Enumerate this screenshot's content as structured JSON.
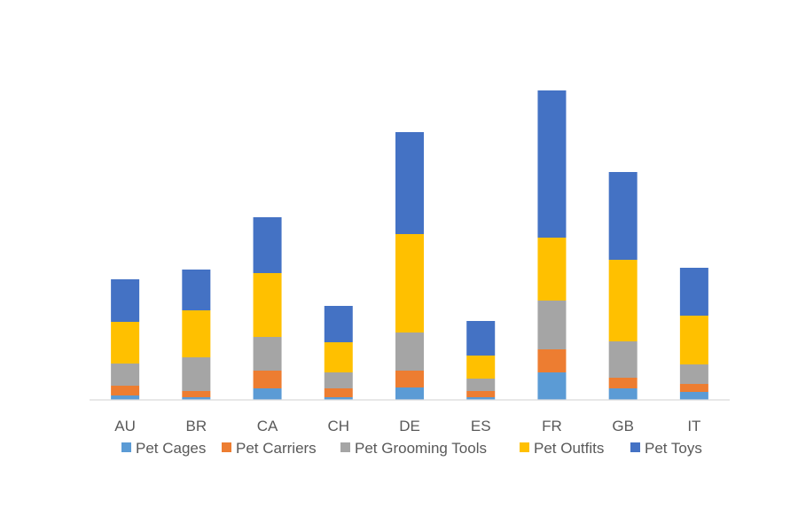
{
  "chart_data": {
    "type": "bar",
    "stacked": true,
    "title": "",
    "xlabel": "",
    "ylabel": "",
    "ylim": [
      0,
      350
    ],
    "grid": false,
    "legend_position": "bottom",
    "categories": [
      "AU",
      "BR",
      "CA",
      "CH",
      "DE",
      "ES",
      "FR",
      "GB",
      "IT"
    ],
    "series": [
      {
        "name": "Pet Cages",
        "color": "#5B9BD5",
        "values": [
          5,
          3,
          13,
          3,
          14,
          3,
          31,
          13,
          9
        ]
      },
      {
        "name": "Pet Carriers",
        "color": "#ED7D31",
        "values": [
          11,
          7,
          20,
          10,
          19,
          7,
          26,
          12,
          9
        ]
      },
      {
        "name": "Pet Grooming Tools",
        "color": "#A5A5A5",
        "values": [
          25,
          38,
          38,
          18,
          43,
          14,
          55,
          41,
          22
        ]
      },
      {
        "name": "Pet Outfits",
        "color": "#FFC000",
        "values": [
          47,
          53,
          72,
          34,
          111,
          26,
          71,
          92,
          55
        ]
      },
      {
        "name": "Pet Toys",
        "color": "#4472C4",
        "values": [
          48,
          46,
          63,
          41,
          115,
          39,
          166,
          99,
          54
        ]
      }
    ]
  }
}
